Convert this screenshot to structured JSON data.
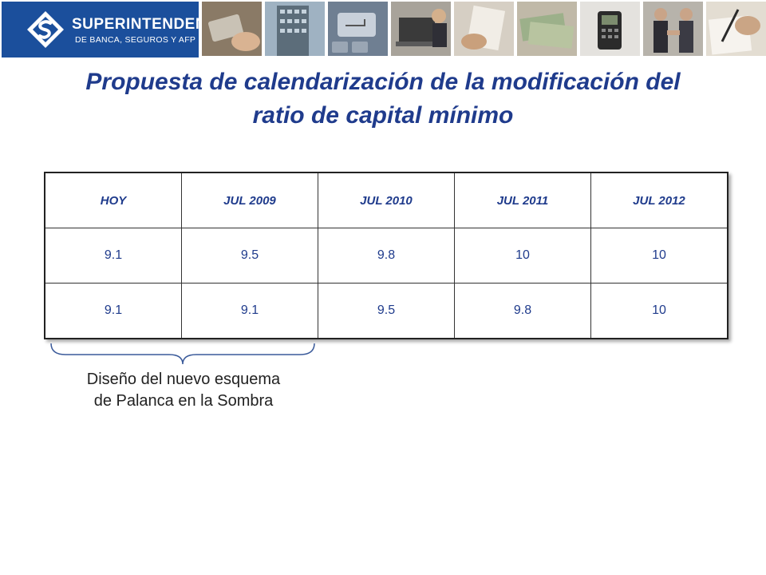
{
  "header": {
    "logo_name": "SUPERINTENDENCIA",
    "logo_sub": "DE BANCA, SEGUROS Y AFP",
    "photos": [
      {
        "icon": "credit-card-photo-icon"
      },
      {
        "icon": "building-photo-icon"
      },
      {
        "icon": "keyboard-enter-photo-icon"
      },
      {
        "icon": "laptop-user-photo-icon"
      },
      {
        "icon": "hand-document-photo-icon"
      },
      {
        "icon": "banknotes-photo-icon"
      },
      {
        "icon": "card-terminal-photo-icon"
      },
      {
        "icon": "handshake-photo-icon"
      },
      {
        "icon": "writing-hand-photo-icon"
      }
    ]
  },
  "title": {
    "line1": "Propuesta de calendarización de la modificación del",
    "line2": "ratio de capital mínimo"
  },
  "table": {
    "headers": [
      "HOY",
      "JUL 2009",
      "JUL 2010",
      "JUL 2011",
      "JUL 2012"
    ],
    "rows": [
      [
        "9.1",
        "9.5",
        "9.8",
        "10",
        "10"
      ],
      [
        "9.1",
        "9.1",
        "9.5",
        "9.8",
        "10"
      ]
    ]
  },
  "annotation": {
    "line1": "Diseño del nuevo esquema",
    "line2": "de Palanca en la Sombra"
  },
  "colors": {
    "brand_blue": "#1b4f9c",
    "title_blue": "#1f3b8c"
  }
}
